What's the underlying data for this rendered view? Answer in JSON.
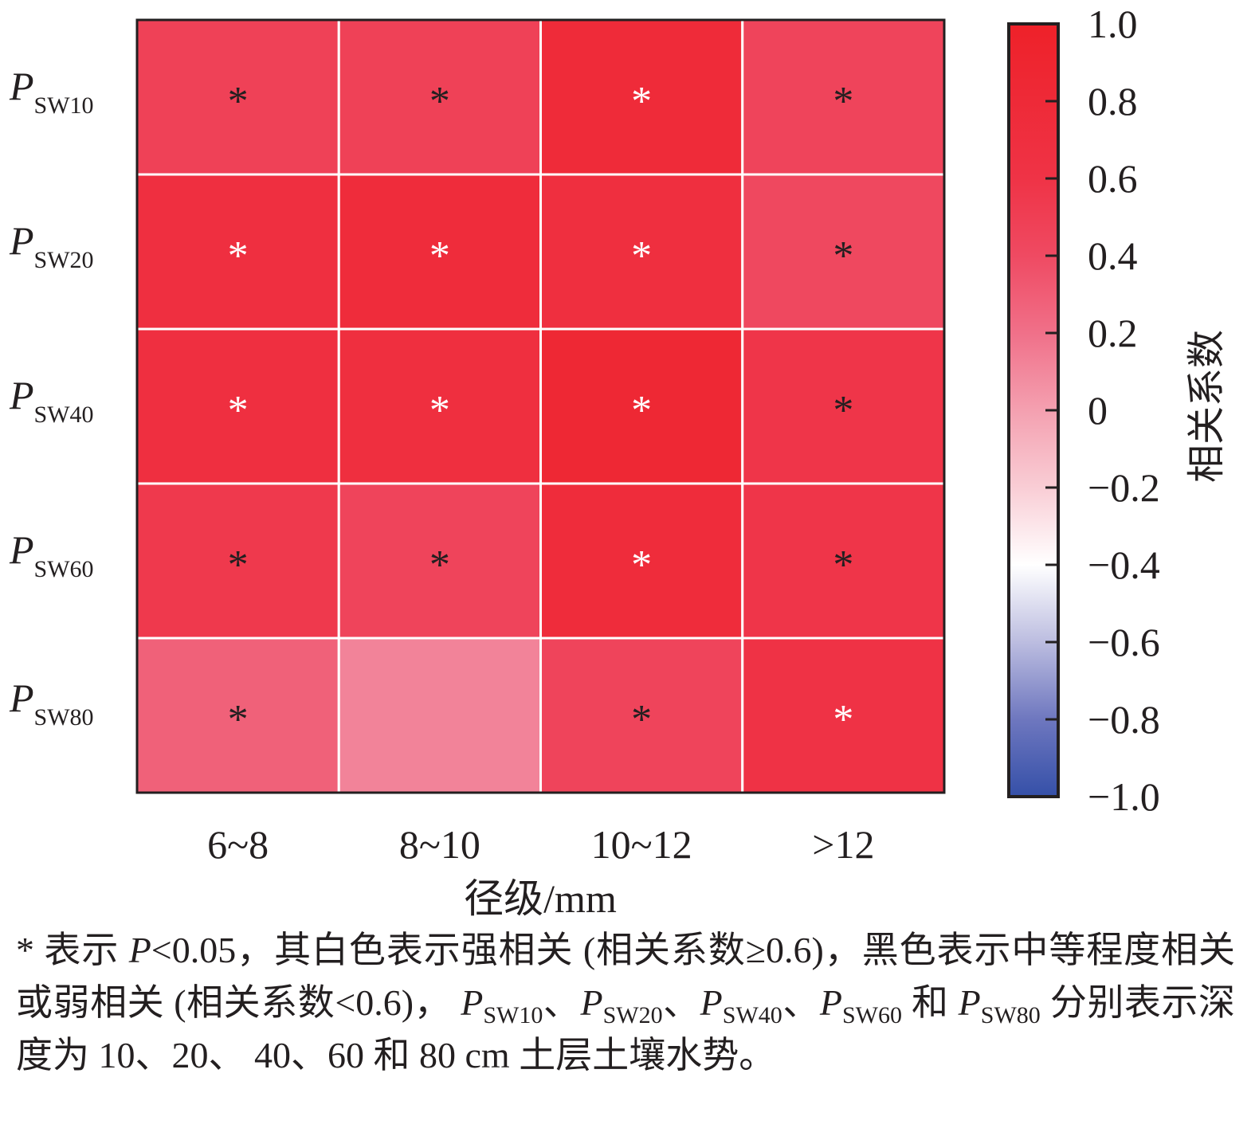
{
  "chart_data": {
    "type": "heatmap",
    "title": "",
    "xlabel": "径级/mm",
    "ylabel": "",
    "x_categories": [
      "6~8",
      "8~10",
      "10~12",
      ">12"
    ],
    "y_categories": [
      {
        "main": "P",
        "sub": "SW10"
      },
      {
        "main": "P",
        "sub": "SW20"
      },
      {
        "main": "P",
        "sub": "SW40"
      },
      {
        "main": "P",
        "sub": "SW60"
      },
      {
        "main": "P",
        "sub": "SW80"
      }
    ],
    "values": [
      [
        0.48,
        0.48,
        0.78,
        0.45
      ],
      [
        0.68,
        0.75,
        0.7,
        0.42
      ],
      [
        0.68,
        0.7,
        0.85,
        0.58
      ],
      [
        0.55,
        0.45,
        0.75,
        0.58
      ],
      [
        0.28,
        0.12,
        0.45,
        0.62
      ]
    ],
    "significance": [
      [
        "black",
        "black",
        "white",
        "black"
      ],
      [
        "white",
        "white",
        "white",
        "black"
      ],
      [
        "white",
        "white",
        "white",
        "black"
      ],
      [
        "black",
        "black",
        "white",
        "black"
      ],
      [
        "black",
        "",
        "black",
        "white"
      ]
    ],
    "marker": "*",
    "colorbar": {
      "label": "相关系数",
      "range": [
        -1.0,
        1.0
      ],
      "ticks": [
        "1.0",
        "0.8",
        "0.6",
        "0.4",
        "0.2",
        "0",
        "−0.2",
        "−0.4",
        "−0.6",
        "−0.8",
        "−1.0"
      ],
      "tick_values": [
        1.0,
        0.8,
        0.6,
        0.4,
        0.2,
        0,
        -0.2,
        -0.4,
        -0.6,
        -0.8,
        -1.0
      ],
      "stops": [
        {
          "v": 1.0,
          "c": "#ee2129"
        },
        {
          "v": 0.6,
          "c": "#ef3346"
        },
        {
          "v": 0.4,
          "c": "#ef4a62"
        },
        {
          "v": 0.2,
          "c": "#f07089"
        },
        {
          "v": 0.0,
          "c": "#f4a0b0"
        },
        {
          "v": -0.2,
          "c": "#f9cdd5"
        },
        {
          "v": -0.4,
          "c": "#ffffff"
        },
        {
          "v": -0.6,
          "c": "#bcbde0"
        },
        {
          "v": -0.8,
          "c": "#6e77bf"
        },
        {
          "v": -1.0,
          "c": "#3550a8"
        }
      ]
    }
  },
  "caption": {
    "p1": "* 表示 ",
    "p2": "P",
    "p3": "<0.05，其白色表示强相关 (相关系数≥0.6)，黑色表示中等程度相关或弱相关 (相关系数<0.6)， ",
    "s10": "SW10",
    "s20": "SW20",
    "s40": "SW40",
    "s60": "SW60",
    "s80": "SW80",
    "sep": "、",
    "and": " 和 ",
    "p4": " 分别表示深度为 10、20、 40、60 和 80 cm 土层土壤水势。"
  }
}
